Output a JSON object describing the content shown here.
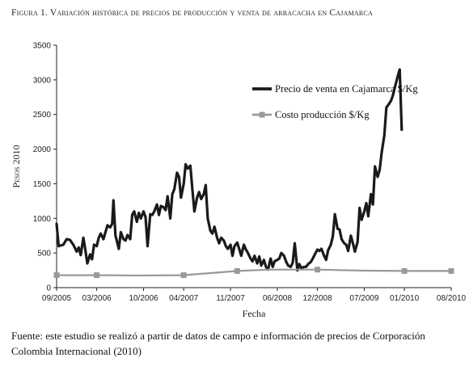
{
  "figure": {
    "title": "Figura 1. Variación histórica de precios de producción y venta de arracacha en Cajamarca",
    "source_note": "Fuente: este estudio se realizó a partir de datos de campo e información de precios de Corporación Colombia Internacional (2010)"
  },
  "colors": {
    "venta": "#1a1a1a",
    "costo": "#999999",
    "axis": "#222222"
  },
  "chart_data": {
    "type": "line",
    "xlabel": "Fecha",
    "ylabel": "Pesos 2010",
    "ylim": [
      0,
      3500
    ],
    "yticks": [
      0,
      500,
      1000,
      1500,
      2000,
      2500,
      3000,
      3500
    ],
    "xticks": [
      {
        "label": "09/2005",
        "t": 0
      },
      {
        "label": "03/2006",
        "t": 6
      },
      {
        "label": "10/2006",
        "t": 13
      },
      {
        "label": "04/2007",
        "t": 19
      },
      {
        "label": "11/2007",
        "t": 26
      },
      {
        "label": "06/2008",
        "t": 33
      },
      {
        "label": "12/2008",
        "t": 39
      },
      {
        "label": "07/2009",
        "t": 46
      },
      {
        "label": "01/2010",
        "t": 52
      },
      {
        "label": "08/2010",
        "t": 59
      }
    ],
    "legend_position": "upper-right",
    "series": [
      {
        "name": "Precio de venta en Cajamarca $/Kg",
        "points": [
          [
            0,
            920
          ],
          [
            0.3,
            600
          ],
          [
            1,
            620
          ],
          [
            1.5,
            700
          ],
          [
            2,
            690
          ],
          [
            2.5,
            620
          ],
          [
            3,
            520
          ],
          [
            3.3,
            580
          ],
          [
            3.6,
            470
          ],
          [
            4,
            720
          ],
          [
            4.3,
            540
          ],
          [
            4.6,
            350
          ],
          [
            5,
            480
          ],
          [
            5.3,
            410
          ],
          [
            5.6,
            620
          ],
          [
            6,
            600
          ],
          [
            6.3,
            720
          ],
          [
            6.6,
            780
          ],
          [
            7,
            700
          ],
          [
            7.3,
            800
          ],
          [
            7.6,
            900
          ],
          [
            8,
            870
          ],
          [
            8.3,
            920
          ],
          [
            8.5,
            1260
          ],
          [
            8.8,
            750
          ],
          [
            9,
            680
          ],
          [
            9.3,
            560
          ],
          [
            9.6,
            800
          ],
          [
            10,
            700
          ],
          [
            10.3,
            680
          ],
          [
            10.6,
            760
          ],
          [
            11,
            700
          ],
          [
            11.3,
            1050
          ],
          [
            11.6,
            1100
          ],
          [
            12,
            950
          ],
          [
            12.3,
            1080
          ],
          [
            12.6,
            1000
          ],
          [
            13,
            1100
          ],
          [
            13.3,
            1020
          ],
          [
            13.6,
            600
          ],
          [
            14,
            1060
          ],
          [
            14.3,
            1050
          ],
          [
            14.6,
            1100
          ],
          [
            15,
            1200
          ],
          [
            15.3,
            1050
          ],
          [
            15.6,
            1180
          ],
          [
            16,
            1160
          ],
          [
            16.3,
            1120
          ],
          [
            16.6,
            1320
          ],
          [
            17,
            1000
          ],
          [
            17.3,
            1350
          ],
          [
            17.6,
            1420
          ],
          [
            18,
            1660
          ],
          [
            18.3,
            1600
          ],
          [
            18.6,
            1300
          ],
          [
            19,
            1500
          ],
          [
            19.3,
            1780
          ],
          [
            19.6,
            1720
          ],
          [
            20,
            1760
          ],
          [
            20.3,
            1420
          ],
          [
            20.6,
            1100
          ],
          [
            21,
            1300
          ],
          [
            21.3,
            1380
          ],
          [
            21.6,
            1280
          ],
          [
            22,
            1350
          ],
          [
            22.3,
            1480
          ],
          [
            22.6,
            1000
          ],
          [
            23,
            820
          ],
          [
            23.3,
            780
          ],
          [
            23.6,
            880
          ],
          [
            24,
            720
          ],
          [
            24.3,
            640
          ],
          [
            24.6,
            720
          ],
          [
            25,
            680
          ],
          [
            25.3,
            600
          ],
          [
            25.6,
            560
          ],
          [
            26,
            620
          ],
          [
            26.3,
            460
          ],
          [
            26.6,
            600
          ],
          [
            27,
            650
          ],
          [
            27.3,
            560
          ],
          [
            27.6,
            460
          ],
          [
            28,
            620
          ],
          [
            28.3,
            550
          ],
          [
            28.6,
            500
          ],
          [
            29,
            420
          ],
          [
            29.3,
            380
          ],
          [
            29.6,
            460
          ],
          [
            30,
            350
          ],
          [
            30.3,
            450
          ],
          [
            30.6,
            320
          ],
          [
            31,
            400
          ],
          [
            31.3,
            300
          ],
          [
            31.6,
            260
          ],
          [
            32,
            420
          ],
          [
            32.3,
            300
          ],
          [
            32.6,
            380
          ],
          [
            33,
            400
          ],
          [
            33.3,
            420
          ],
          [
            33.6,
            500
          ],
          [
            34,
            460
          ],
          [
            34.3,
            380
          ],
          [
            34.6,
            320
          ],
          [
            35,
            300
          ],
          [
            35.3,
            360
          ],
          [
            35.6,
            640
          ],
          [
            36,
            250
          ],
          [
            36.3,
            340
          ],
          [
            36.6,
            280
          ],
          [
            37,
            300
          ],
          [
            37.3,
            300
          ],
          [
            37.6,
            340
          ],
          [
            38,
            370
          ],
          [
            38.3,
            420
          ],
          [
            38.6,
            480
          ],
          [
            39,
            550
          ],
          [
            39.3,
            530
          ],
          [
            39.6,
            560
          ],
          [
            40,
            460
          ],
          [
            40.3,
            400
          ],
          [
            40.6,
            540
          ],
          [
            41,
            620
          ],
          [
            41.3,
            740
          ],
          [
            41.6,
            1060
          ],
          [
            42,
            850
          ],
          [
            42.3,
            840
          ],
          [
            42.6,
            700
          ],
          [
            43,
            640
          ],
          [
            43.3,
            620
          ],
          [
            43.6,
            530
          ],
          [
            44,
            750
          ],
          [
            44.3,
            640
          ],
          [
            44.6,
            520
          ],
          [
            45,
            660
          ],
          [
            45.3,
            1150
          ],
          [
            45.6,
            980
          ],
          [
            46,
            1100
          ],
          [
            46.3,
            1220
          ],
          [
            46.6,
            1030
          ],
          [
            47,
            1350
          ],
          [
            47.3,
            1200
          ],
          [
            47.6,
            1750
          ],
          [
            48,
            1600
          ],
          [
            48.3,
            1700
          ],
          [
            48.6,
            1950
          ],
          [
            49,
            2200
          ],
          [
            49.3,
            2600
          ],
          [
            49.6,
            2640
          ],
          [
            50,
            2700
          ],
          [
            50.3,
            2780
          ],
          [
            50.6,
            2900
          ],
          [
            51,
            3050
          ],
          [
            51.3,
            3150
          ],
          [
            51.6,
            2280
          ]
        ]
      },
      {
        "name": "Costo producción  $/Kg",
        "points": [
          [
            0,
            180
          ],
          [
            6,
            180
          ],
          [
            12,
            175
          ],
          [
            19,
            180
          ],
          [
            27,
            240
          ],
          [
            32,
            260
          ],
          [
            39,
            260
          ],
          [
            46,
            245
          ],
          [
            52,
            240
          ],
          [
            59,
            240
          ]
        ],
        "markers": [
          [
            0,
            180
          ],
          [
            6,
            180
          ],
          [
            19,
            180
          ],
          [
            27,
            240
          ],
          [
            39,
            260
          ],
          [
            52,
            240
          ],
          [
            59,
            240
          ]
        ]
      }
    ]
  }
}
